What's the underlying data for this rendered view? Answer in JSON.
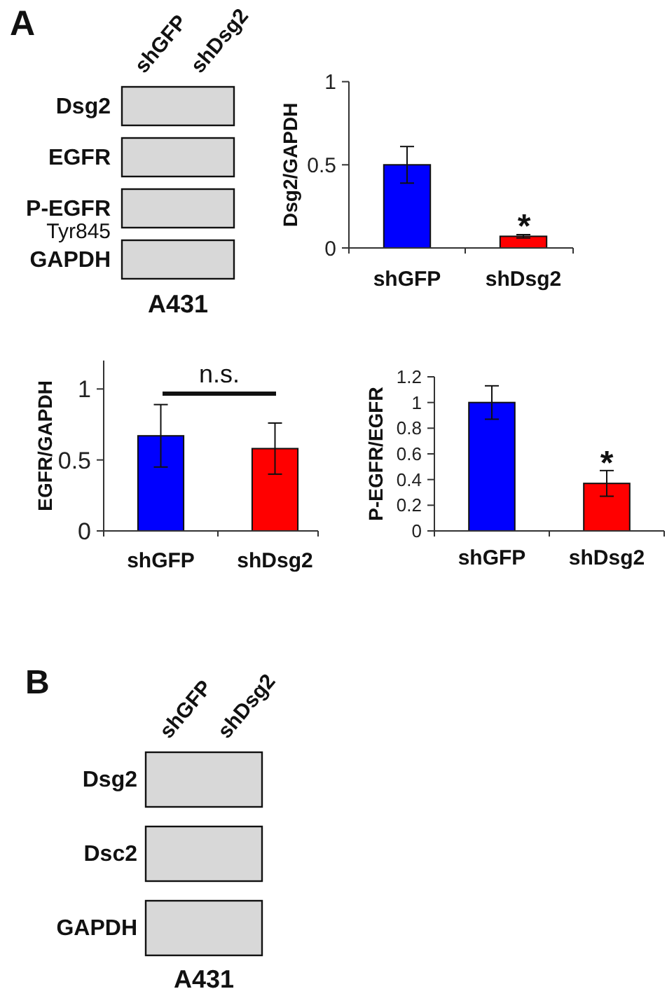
{
  "chart_data": [
    {
      "type": "other",
      "title": "A",
      "categories": [
        "shGFP",
        "shDsg2"
      ],
      "y_categories": [
        "Dsg2",
        "EGFR",
        "P-EGFR\nTyr845",
        "GAPDH"
      ],
      "xlabel": "A431"
    },
    {
      "type": "bar",
      "categories": [
        "shGFP",
        "shDsg2"
      ],
      "values": [
        0.5,
        0.07
      ],
      "colors": [
        "#0000ff",
        "#ff0000"
      ],
      "errors": [
        0.11,
        0.01
      ],
      "ylabel": "Dsg2/GAPDH",
      "ylim": [
        0,
        1
      ],
      "yticks": [
        0,
        0.5,
        1
      ],
      "annotations": [
        "*"
      ]
    },
    {
      "type": "bar",
      "categories": [
        "shGFP",
        "shDsg2"
      ],
      "values": [
        0.67,
        0.58
      ],
      "colors": [
        "#0000ff",
        "#ff0000"
      ],
      "errors": [
        0.22,
        0.18
      ],
      "ylabel": "EGFR/GAPDH",
      "ylim": [
        0,
        1.2
      ],
      "yticks": [
        0,
        0.5,
        1
      ],
      "annotations": [
        "n.s."
      ]
    },
    {
      "type": "bar",
      "categories": [
        "shGFP",
        "shDsg2"
      ],
      "values": [
        1.0,
        0.37
      ],
      "colors": [
        "#0000ff",
        "#ff0000"
      ],
      "errors": [
        0.13,
        0.1
      ],
      "ylabel": "P-EGFR/EGFR",
      "ylim": [
        0,
        1.2
      ],
      "yticks": [
        0,
        0.2,
        0.4,
        0.6,
        0.8,
        1,
        1.2
      ],
      "annotations": [
        "*"
      ]
    },
    {
      "type": "other",
      "title": "B",
      "categories": [
        "shGFP",
        "shDsg2"
      ],
      "y_categories": [
        "Dsg2",
        "Dsc2",
        "GAPDH"
      ],
      "xlabel": "A431"
    }
  ]
}
